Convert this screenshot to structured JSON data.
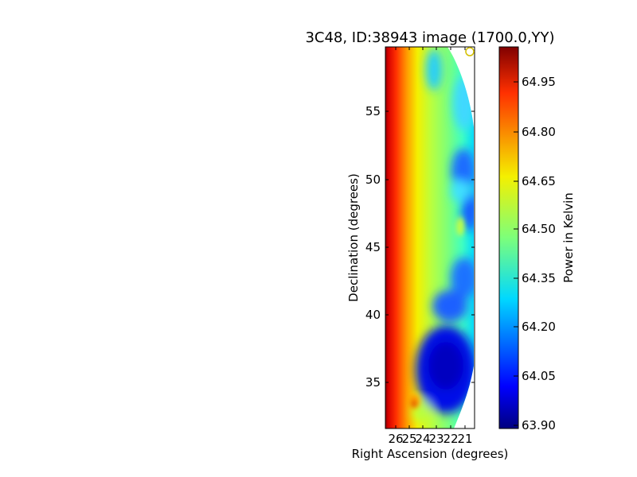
{
  "chart_data": {
    "type": "heatmap",
    "title": "3C48, ID:38943 image (1700.0,YY)",
    "xlabel": "Right Ascension (degrees)",
    "ylabel": "Declination (degrees)",
    "x_ticks": [
      "26",
      "25",
      "24",
      "23",
      "22",
      "21"
    ],
    "y_ticks": [
      "55",
      "50",
      "45",
      "40",
      "35"
    ],
    "colorbar": {
      "label": "Power in Kelvin",
      "min": 63.9,
      "max": 65.03,
      "ticks": [
        "64.95",
        "64.80",
        "64.65",
        "64.50",
        "64.35",
        "64.20",
        "64.05",
        "63.90"
      ],
      "colormap": "jet"
    },
    "marker": {
      "type": "circle",
      "color": "#d4c000"
    }
  }
}
